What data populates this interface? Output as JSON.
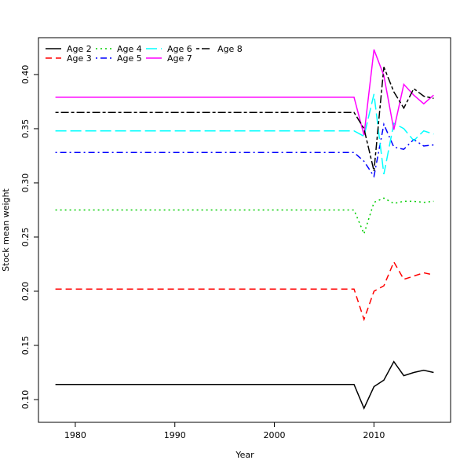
{
  "chart_data": {
    "type": "line",
    "title": "",
    "xlabel": "Year",
    "ylabel": "Stock mean weight",
    "xlim": [
      1976.3,
      2017.7
    ],
    "ylim": [
      0.079,
      0.434
    ],
    "x_ticks": [
      1980,
      1990,
      2000,
      2010
    ],
    "y_ticks": [
      0.1,
      0.15,
      0.2,
      0.25,
      0.3,
      0.35,
      0.4
    ],
    "x_tick_labels": [
      "1980",
      "1990",
      "2000",
      "2010"
    ],
    "y_tick_labels": [
      "0.10",
      "0.15",
      "0.20",
      "0.25",
      "0.30",
      "0.35",
      "0.40"
    ],
    "grid": false,
    "legend_position": "top-left",
    "x": [
      1978,
      2008,
      2009,
      2010,
      2011,
      2012,
      2013,
      2014,
      2015,
      2016
    ],
    "series": [
      {
        "name": "Age 2",
        "color": "#000000",
        "dash": "solid",
        "values": [
          0.114,
          0.114,
          0.092,
          0.112,
          0.118,
          0.135,
          0.122,
          0.125,
          0.127,
          0.125
        ]
      },
      {
        "name": "Age 3",
        "color": "#ff0000",
        "dash": "dashed",
        "values": [
          0.202,
          0.202,
          0.174,
          0.2,
          0.205,
          0.227,
          0.211,
          0.214,
          0.217,
          0.215
        ]
      },
      {
        "name": "Age 4",
        "color": "#00cd00",
        "dash": "dotted",
        "values": [
          0.275,
          0.275,
          0.253,
          0.282,
          0.286,
          0.281,
          0.283,
          0.283,
          0.282,
          0.283
        ]
      },
      {
        "name": "Age 5",
        "color": "#0000ff",
        "dash": "dotdash",
        "values": [
          0.328,
          0.328,
          0.32,
          0.306,
          0.354,
          0.333,
          0.331,
          0.34,
          0.334,
          0.335
        ]
      },
      {
        "name": "Age 6",
        "color": "#00ffff",
        "dash": "longdash",
        "values": [
          0.348,
          0.348,
          0.343,
          0.382,
          0.308,
          0.355,
          0.35,
          0.339,
          0.348,
          0.345
        ]
      },
      {
        "name": "Age 7",
        "color": "#ff00ff",
        "dash": "solid",
        "values": [
          0.379,
          0.379,
          0.344,
          0.423,
          0.399,
          0.349,
          0.391,
          0.381,
          0.373,
          0.381
        ]
      },
      {
        "name": "Age 8",
        "color": "#000000",
        "dash": "twodash",
        "values": [
          0.365,
          0.365,
          0.35,
          0.311,
          0.407,
          0.384,
          0.369,
          0.387,
          0.38,
          0.378
        ]
      }
    ]
  }
}
